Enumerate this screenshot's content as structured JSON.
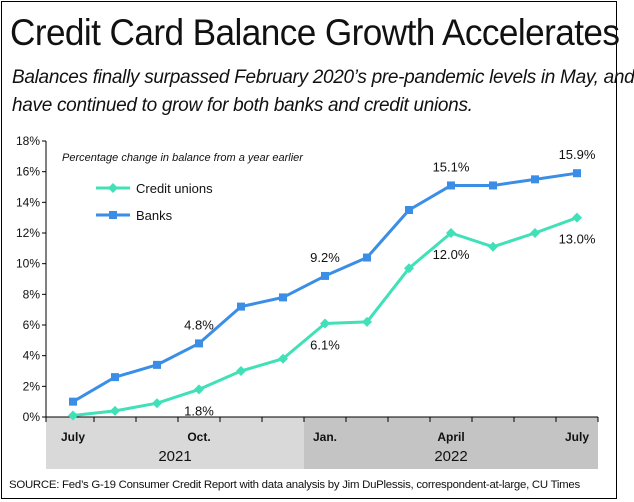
{
  "header": {
    "title": "Credit Card Balance Growth Accelerates",
    "subtitle_line1": "Balances finally surpassed February 2020’s pre-pandemic levels in May, and",
    "subtitle_line2": "have continued to grow for both banks and credit unions."
  },
  "footer": {
    "source": "SOURCE: Fed’s G-19 Consumer Credit Report with data analysis by Jim DuPlessis, correspondent-at-large, CU Times"
  },
  "chart_data": {
    "type": "line",
    "note": "Percentage change in balance from a year earlier",
    "x": [
      "2021-07",
      "2021-08",
      "2021-09",
      "2021-10",
      "2021-11",
      "2021-12",
      "2022-01",
      "2022-02",
      "2022-03",
      "2022-04",
      "2022-05",
      "2022-06",
      "2022-07"
    ],
    "x_tick_labels": [
      {
        "x": "2021-07",
        "label": "July"
      },
      {
        "x": "2021-10",
        "label": "Oct."
      },
      {
        "x": "2022-01",
        "label": "Jan."
      },
      {
        "x": "2022-04",
        "label": "April"
      },
      {
        "x": "2022-07",
        "label": "July"
      }
    ],
    "year_bands": [
      {
        "label": "2021",
        "from": "2021-07",
        "to": "2021-12",
        "fill": "#d9d9d9"
      },
      {
        "label": "2022",
        "from": "2022-01",
        "to": "2022-07",
        "fill": "#c4c4c4"
      }
    ],
    "ylim": [
      0,
      18
    ],
    "yticks": [
      0,
      2,
      4,
      6,
      8,
      10,
      12,
      14,
      16,
      18
    ],
    "y_tick_labels": [
      "0%",
      "2%",
      "4%",
      "6%",
      "8%",
      "10%",
      "12%",
      "14%",
      "16%",
      "18%"
    ],
    "grid": false,
    "legend_position": "top-left",
    "series": [
      {
        "name": "Credit unions",
        "color": "#40e0b8",
        "marker": "diamond",
        "values": [
          0.1,
          0.4,
          0.9,
          1.8,
          3.0,
          3.8,
          6.1,
          6.2,
          9.7,
          12.0,
          11.1,
          12.0,
          13.0
        ]
      },
      {
        "name": "Banks",
        "color": "#3a8ee6",
        "marker": "square",
        "values": [
          1.0,
          2.6,
          3.4,
          4.8,
          7.2,
          7.8,
          9.2,
          10.4,
          13.5,
          15.1,
          15.1,
          15.5,
          15.9
        ]
      }
    ],
    "data_labels": [
      {
        "series": "Banks",
        "x": "2021-10",
        "text": "4.8%",
        "placement": "above"
      },
      {
        "series": "Banks",
        "x": "2022-01",
        "text": "9.2%",
        "placement": "above"
      },
      {
        "series": "Banks",
        "x": "2022-04",
        "text": "15.1%",
        "placement": "above"
      },
      {
        "series": "Banks",
        "x": "2022-07",
        "text": "15.9%",
        "placement": "above"
      },
      {
        "series": "Credit unions",
        "x": "2021-10",
        "text": "1.8%",
        "placement": "below"
      },
      {
        "series": "Credit unions",
        "x": "2022-01",
        "text": "6.1%",
        "placement": "below"
      },
      {
        "series": "Credit unions",
        "x": "2022-04",
        "text": "12.0%",
        "placement": "below"
      },
      {
        "series": "Credit unions",
        "x": "2022-07",
        "text": "13.0%",
        "placement": "below"
      }
    ]
  }
}
